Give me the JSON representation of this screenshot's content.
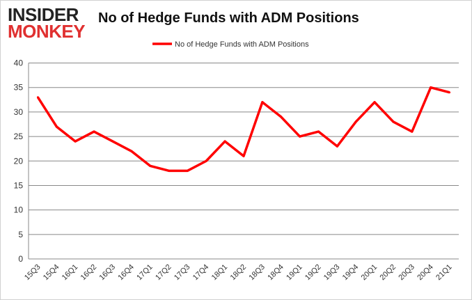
{
  "logo": {
    "line1": "INSIDER",
    "line2": "MONKEY"
  },
  "colors": {
    "series": "#ff0000",
    "grid": "#888888",
    "logo_red": "#e03030"
  },
  "chart_data": {
    "type": "line",
    "title": "No of Hedge Funds with ADM Positions",
    "xlabel": "",
    "ylabel": "",
    "ylim": [
      0,
      40
    ],
    "yticks": [
      0,
      5,
      10,
      15,
      20,
      25,
      30,
      35,
      40
    ],
    "grid": true,
    "legend": "top",
    "categories": [
      "15Q3",
      "15Q4",
      "16Q1",
      "16Q2",
      "16Q3",
      "16Q4",
      "17Q1",
      "17Q2",
      "17Q3",
      "17Q4",
      "18Q1",
      "18Q2",
      "18Q3",
      "18Q4",
      "19Q1",
      "19Q2",
      "19Q3",
      "19Q4",
      "20Q1",
      "20Q2",
      "20Q3",
      "20Q4",
      "21Q1"
    ],
    "series": [
      {
        "name": "No of Hedge Funds with ADM Positions",
        "values": [
          33,
          27,
          24,
          26,
          24,
          22,
          19,
          18,
          18,
          20,
          24,
          21,
          32,
          29,
          25,
          26,
          23,
          28,
          32,
          28,
          26,
          35,
          34
        ]
      }
    ]
  }
}
